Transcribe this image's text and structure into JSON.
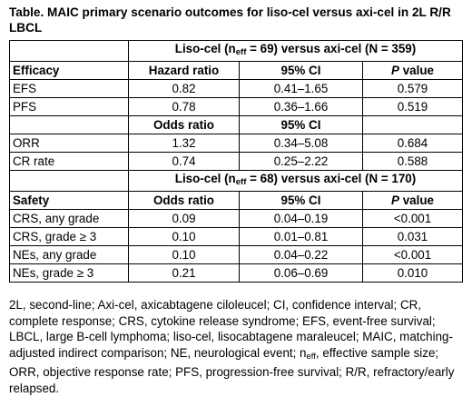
{
  "title": "Table. MAIC primary scenario outcomes for liso-cel versus axi-cel in 2L R/R LBCL",
  "efficacy_header": {
    "comparison_pre": "Liso-cel (n",
    "comparison_sub": "eff",
    "comparison_post": " = 69) versus axi-cel (N = 359)"
  },
  "efficacy_columns": {
    "section": "Efficacy",
    "measure": "Hazard ratio",
    "ci": "95% CI",
    "p": "P",
    "p_suffix": " value"
  },
  "efficacy_rows": [
    {
      "label": "EFS",
      "value": "0.82",
      "ci": "0.41–1.65",
      "p": "0.579"
    },
    {
      "label": "PFS",
      "value": "0.78",
      "ci": "0.36–1.66",
      "p": "0.519"
    }
  ],
  "odds_header": {
    "measure": "Odds ratio",
    "ci": "95% CI"
  },
  "odds_rows": [
    {
      "label": "ORR",
      "value": "1.32",
      "ci": "0.34–5.08",
      "p": "0.684"
    },
    {
      "label": "CR rate",
      "value": "0.74",
      "ci": "0.25–2.22",
      "p": "0.588"
    }
  ],
  "safety_header": {
    "comparison_pre": "Liso-cel (n",
    "comparison_sub": "eff",
    "comparison_post": " = 68) versus axi-cel (N = 170)"
  },
  "safety_columns": {
    "section": "Safety",
    "measure": "Odds ratio",
    "ci": "95% CI",
    "p": "P",
    "p_suffix": " value"
  },
  "safety_rows": [
    {
      "label": "CRS, any grade",
      "value": "0.09",
      "ci": "0.04–0.19",
      "p": "<0.001"
    },
    {
      "label": "CRS, grade ≥ 3",
      "value": "0.10",
      "ci": "0.01–0.81",
      "p": "0.031"
    },
    {
      "label": "NEs, any grade",
      "value": "0.10",
      "ci": "0.04–0.22",
      "p": "<0.001"
    },
    {
      "label": "NEs, grade ≥ 3",
      "value": "0.21",
      "ci": "0.06–0.69",
      "p": "0.010"
    }
  ],
  "footnote": {
    "pre": "2L, second-line; Axi-cel, axicabtagene ciloleucel; CI, confidence interval; CR, complete response; CRS, cytokine release syndrome; EFS, event-free survival; LBCL, large B-cell lymphoma; liso-cel, lisocabtagene maraleucel; MAIC, matching-adjusted indirect comparison; NE, neurological event; n",
    "sub": "eff",
    "post": ", effective sample size; ORR, objective response rate; PFS, progression-free survival; R/R, refractory/early relapsed."
  }
}
